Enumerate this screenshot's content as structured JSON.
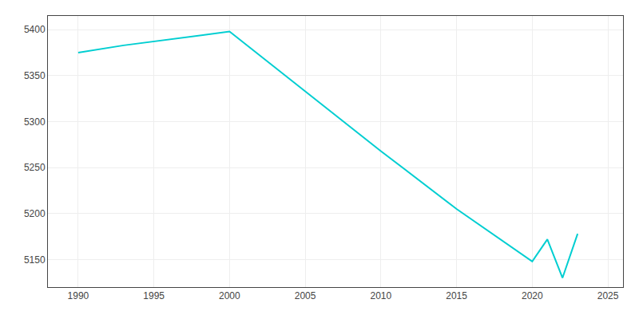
{
  "chart_data": {
    "type": "line",
    "x": [
      1990,
      1993,
      2000,
      2010,
      2015,
      2020,
      2021,
      2022,
      2023
    ],
    "values": [
      5375,
      5383,
      5398,
      5268,
      5205,
      5148,
      5172,
      5130,
      5178
    ],
    "color": "#00CED1",
    "xlim": [
      1988,
      2026
    ],
    "ylim": [
      5120,
      5415
    ],
    "xticks": [
      1990,
      1995,
      2000,
      2005,
      2010,
      2015,
      2020,
      2025
    ],
    "yticks": [
      5150,
      5200,
      5250,
      5300,
      5350,
      5400
    ],
    "grid": true
  }
}
